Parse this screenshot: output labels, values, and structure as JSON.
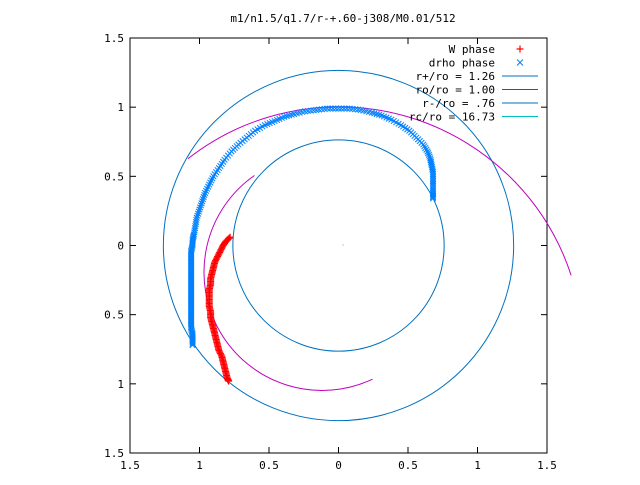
{
  "chart_data": {
    "type": "scatter",
    "title": "m1/n1.5/q1.7/r-+.60-j308/M0.01/512",
    "xlabel": "",
    "ylabel": "",
    "xlim": [
      -1.5,
      1.5
    ],
    "ylim": [
      -1.5,
      1.5
    ],
    "x_ticks": [
      "1.5",
      "1",
      "0.5",
      "0",
      "0.5",
      "1",
      "1.5"
    ],
    "y_ticks": [
      "1.5",
      "1",
      "0.5",
      "0",
      "0.5",
      "1",
      "1.5"
    ],
    "x_tick_values": [
      -1.5,
      -1,
      -0.5,
      0,
      0.5,
      1,
      1.5
    ],
    "y_tick_values": [
      1.5,
      1,
      0.5,
      0,
      -0.5,
      -1,
      -1.5
    ],
    "grid": false,
    "legend_position": "top-right",
    "legend": [
      {
        "label": "W phase",
        "color": "#ff0000",
        "marker": "plus"
      },
      {
        "label": "drho phase",
        "color": "#0080ff",
        "marker": "cross"
      },
      {
        "label": "r+/ro = 1.26",
        "color": "#0070c0",
        "marker": "line"
      },
      {
        "label": "ro/ro = 1.00",
        "color": "#c000c0",
        "marker": "line"
      },
      {
        "label": "r-/ro = .76",
        "color": "#0070c0",
        "marker": "line"
      },
      {
        "label": "rc/ro = 16.73",
        "color": "#00c0c0",
        "marker": "line"
      }
    ],
    "circles": [
      {
        "name": "r+/ro = 1.26",
        "cx": 0,
        "cy": 0,
        "r": 1.26,
        "color": "#0070c0"
      },
      {
        "name": "ro/ro = 1.00",
        "cx": 0,
        "cy": -0.76,
        "r": 1.76,
        "color": "#c000c0",
        "from_deg": 18,
        "to_deg": 128
      },
      {
        "name": "ro/ro = 1.00",
        "cx": -0.18,
        "cy": -0.23,
        "r": 0.85,
        "color": "#c000c0",
        "from_deg": 120,
        "to_deg": 300
      },
      {
        "name": "r-/ro = .76",
        "cx": 0,
        "cy": 0,
        "r": 0.76,
        "color": "#0070c0"
      }
    ],
    "series": [
      {
        "name": "W phase",
        "color": "#ff0000",
        "marker": "plus",
        "points": [
          [
            -0.78,
            0.06
          ],
          [
            -0.81,
            0.03
          ],
          [
            -0.83,
            0.0
          ],
          [
            -0.85,
            -0.04
          ],
          [
            -0.87,
            -0.08
          ],
          [
            -0.89,
            -0.12
          ],
          [
            -0.9,
            -0.16
          ],
          [
            -0.91,
            -0.2
          ],
          [
            -0.92,
            -0.24
          ],
          [
            -0.92,
            -0.28
          ],
          [
            -0.93,
            -0.32
          ],
          [
            -0.93,
            -0.36
          ],
          [
            -0.93,
            -0.4
          ],
          [
            -0.93,
            -0.44
          ],
          [
            -0.92,
            -0.48
          ],
          [
            -0.92,
            -0.52
          ],
          [
            -0.91,
            -0.56
          ],
          [
            -0.9,
            -0.6
          ],
          [
            -0.89,
            -0.64
          ],
          [
            -0.88,
            -0.68
          ],
          [
            -0.87,
            -0.72
          ],
          [
            -0.86,
            -0.76
          ],
          [
            -0.84,
            -0.8
          ],
          [
            -0.83,
            -0.84
          ],
          [
            -0.82,
            -0.88
          ],
          [
            -0.81,
            -0.92
          ],
          [
            -0.8,
            -0.96
          ],
          [
            -0.79,
            -0.98
          ]
        ]
      },
      {
        "name": "drho phase",
        "color": "#0080ff",
        "marker": "cross",
        "points": [
          [
            -1.05,
            -0.72
          ],
          [
            -1.05,
            -0.68
          ],
          [
            -1.05,
            -0.64
          ],
          [
            -1.06,
            -0.6
          ],
          [
            -1.06,
            -0.56
          ],
          [
            -1.06,
            -0.52
          ],
          [
            -1.06,
            -0.48
          ],
          [
            -1.06,
            -0.44
          ],
          [
            -1.06,
            -0.4
          ],
          [
            -1.06,
            -0.36
          ],
          [
            -1.06,
            -0.32
          ],
          [
            -1.06,
            -0.28
          ],
          [
            -1.06,
            -0.24
          ],
          [
            -1.06,
            -0.2
          ],
          [
            -1.06,
            -0.16
          ],
          [
            -1.06,
            -0.12
          ],
          [
            -1.06,
            -0.08
          ],
          [
            -1.06,
            -0.04
          ],
          [
            -1.05,
            0.0
          ],
          [
            -1.05,
            0.04
          ],
          [
            -1.04,
            0.08
          ],
          [
            -1.03,
            0.14
          ],
          [
            -1.02,
            0.2
          ],
          [
            -1.0,
            0.26
          ],
          [
            -0.98,
            0.32
          ],
          [
            -0.96,
            0.38
          ],
          [
            -0.93,
            0.44
          ],
          [
            -0.9,
            0.5
          ],
          [
            -0.86,
            0.56
          ],
          [
            -0.82,
            0.62
          ],
          [
            -0.77,
            0.68
          ],
          [
            -0.72,
            0.73
          ],
          [
            -0.66,
            0.78
          ],
          [
            -0.6,
            0.83
          ],
          [
            -0.53,
            0.87
          ],
          [
            -0.46,
            0.9
          ],
          [
            -0.39,
            0.93
          ],
          [
            -0.32,
            0.95
          ],
          [
            -0.24,
            0.97
          ],
          [
            -0.16,
            0.98
          ],
          [
            -0.08,
            0.99
          ],
          [
            0.0,
            0.99
          ],
          [
            0.08,
            0.99
          ],
          [
            0.16,
            0.98
          ],
          [
            0.24,
            0.96
          ],
          [
            0.31,
            0.94
          ],
          [
            0.38,
            0.91
          ],
          [
            0.45,
            0.87
          ],
          [
            0.51,
            0.83
          ],
          [
            0.56,
            0.78
          ],
          [
            0.61,
            0.73
          ],
          [
            0.64,
            0.68
          ],
          [
            0.66,
            0.63
          ],
          [
            0.67,
            0.58
          ],
          [
            0.68,
            0.53
          ],
          [
            0.68,
            0.48
          ],
          [
            0.68,
            0.43
          ],
          [
            0.68,
            0.38
          ],
          [
            0.68,
            0.34
          ]
        ]
      }
    ]
  }
}
